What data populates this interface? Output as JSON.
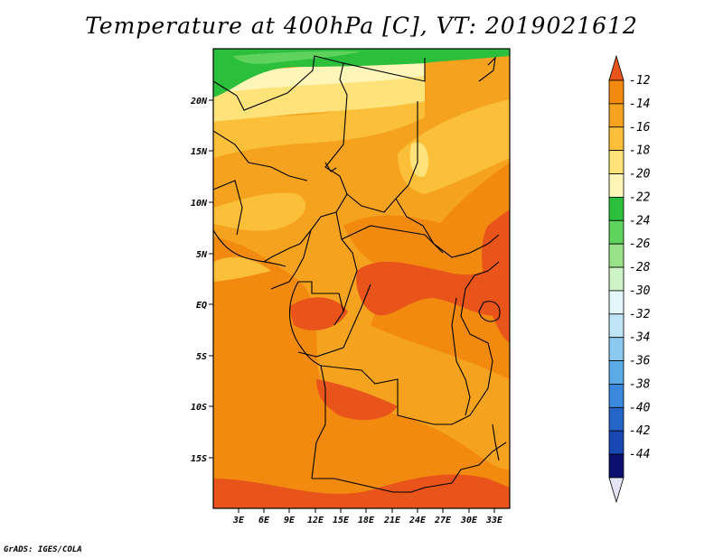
{
  "title": "Temperature at 400hPa [C], VT: 2019021612",
  "credit": "GrADS: IGES/COLA",
  "map": {
    "lon_range": [
      0,
      34.5
    ],
    "lat_range": [
      -20,
      25
    ],
    "lat_ticks": [
      "20N",
      "15N",
      "10N",
      "5N",
      "EQ",
      "5S",
      "10S",
      "15S"
    ],
    "lon_ticks": [
      "3E",
      "6E",
      "9E",
      "12E",
      "15E",
      "18E",
      "21E",
      "24E",
      "27E",
      "30E",
      "33E"
    ]
  },
  "colorbar": {
    "labels": [
      "-12",
      "-14",
      "-16",
      "-18",
      "-20",
      "-22",
      "-24",
      "-26",
      "-28",
      "-30",
      "-32",
      "-34",
      "-36",
      "-38",
      "-40",
      "-42",
      "-44"
    ],
    "colors": [
      "#e8541a",
      "#f28a0f",
      "#f5a31e",
      "#fbbf3a",
      "#fde37a",
      "#fff5b8",
      "#2bbf3c",
      "#5fd25e",
      "#98e389",
      "#cdf3c6",
      "#e6f7fb",
      "#bfe4f6",
      "#8cc9ef",
      "#5aaae6",
      "#3a89dc",
      "#2565c8",
      "#1947b4",
      "#0c0f6e",
      "#e4e4f6"
    ]
  }
}
